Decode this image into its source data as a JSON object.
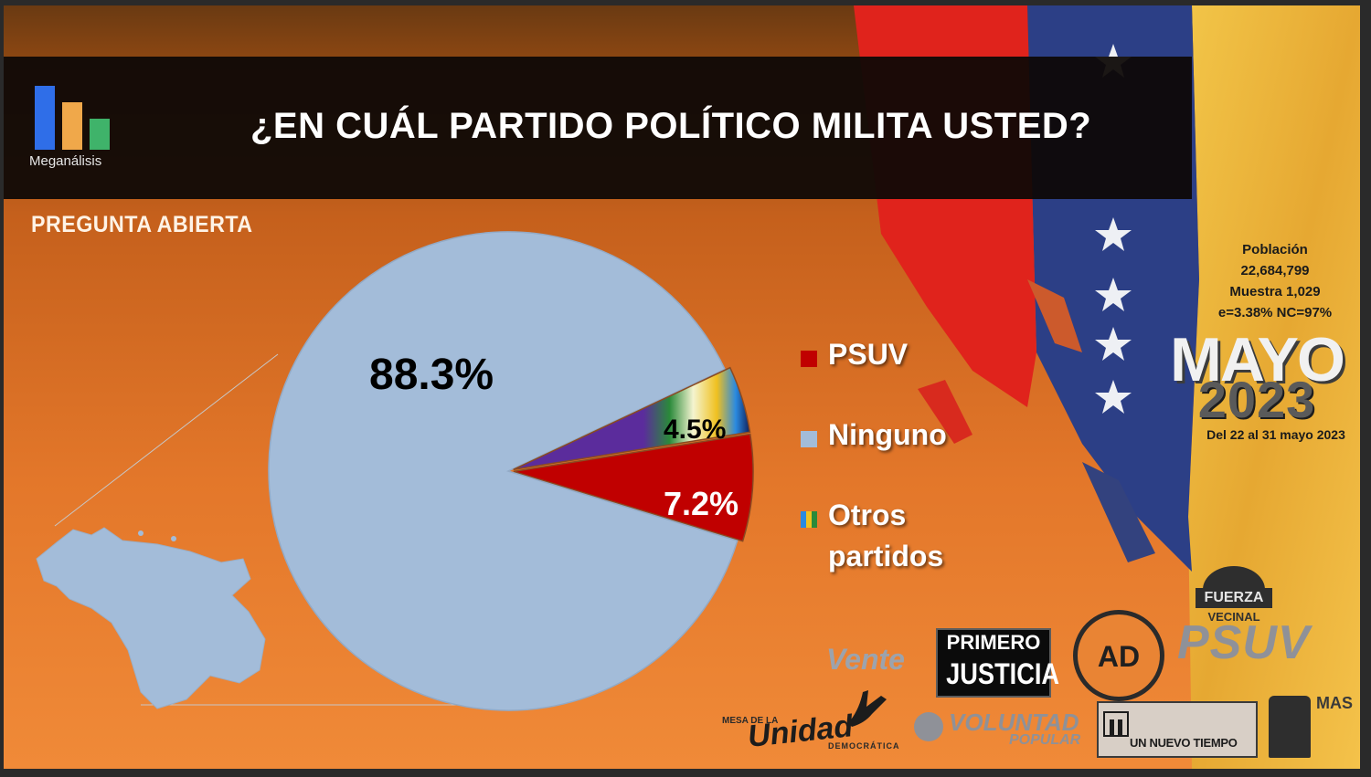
{
  "header": {
    "title": "¿EN CUÁL PARTIDO POLÍTICO MILITA USTED?",
    "brand": "Meganálisis",
    "subtitle": "PREGUNTA ABIERTA"
  },
  "chart_data": {
    "type": "pie",
    "categories": [
      "PSUV",
      "Ninguno",
      "Otros partidos"
    ],
    "values": [
      7.2,
      88.3,
      4.5
    ],
    "labels": [
      "7.2%",
      "88.3%",
      "4.5%"
    ],
    "unit": "%",
    "legend": [
      "PSUV",
      "Ninguno",
      "Otros partidos"
    ],
    "legend_position": "right",
    "colors": [
      "#c00000",
      "#a3bcd9",
      "multicolor"
    ]
  },
  "legend_lines": {
    "psuv": "PSUV",
    "ninguno": "Ninguno",
    "otros_1": "Otros",
    "otros_2": "partidos"
  },
  "survey": {
    "line1": "Población",
    "line2": "22,684,799",
    "line3": "Muestra 1,029",
    "line4": "e=3.38%  NC=97%",
    "month": "MAYO",
    "year": "2023",
    "dates": "Del 22 al 31 mayo 2023"
  },
  "logos": {
    "vente": "Vente",
    "pj_line1": "PRIMERO",
    "pj_line2": "JUSTICIA",
    "ad": "AD",
    "fv_line1": "FUERZA",
    "fv_line2": "VECINAL",
    "psuv": "PSUV",
    "mud_top": "MESA DE LA",
    "mud_main": "Unidad",
    "mud_bottom": "DEMOCRÁTICA",
    "vp_main": "VOLUNTAD",
    "vp_sub": "POPULAR",
    "unt": "UN NUEVO TIEMPO",
    "mas": "MAS"
  },
  "colors": {
    "psuv": "#c00000",
    "ninguno": "#a3bcd9",
    "background": "#e3772a",
    "title_bar": "#0e0806"
  }
}
